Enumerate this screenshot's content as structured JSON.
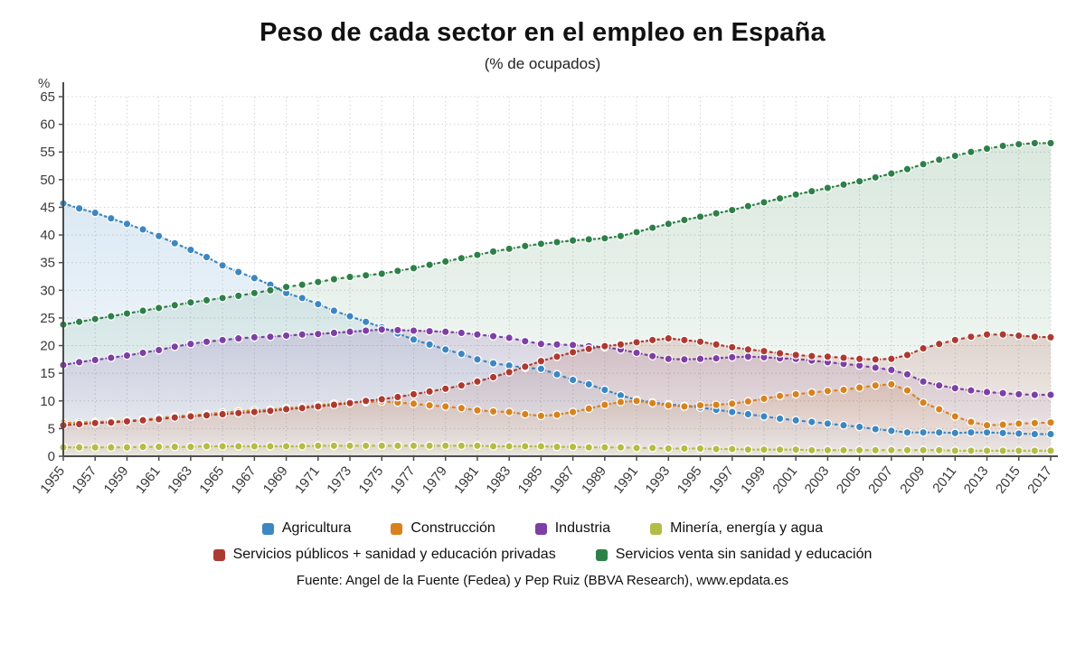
{
  "page": {
    "title": "Peso de cada sector en el empleo en España",
    "subtitle": "(% de ocupados)",
    "source": "Fuente: Angel de la Fuente (Fedea) y Pep Ruiz (BBVA Research), www.epdata.es"
  },
  "chart_data": {
    "type": "line",
    "title": "Peso de cada sector en el empleo en España",
    "subtitle": "(% de ocupados)",
    "y_unit": "%",
    "ylim": [
      0,
      65
    ],
    "y_ticks": [
      0,
      5,
      10,
      15,
      20,
      25,
      30,
      35,
      40,
      45,
      50,
      55,
      60,
      65
    ],
    "grid": true,
    "legend_position": "bottom",
    "marker": "circle",
    "line_style": "dotted",
    "x": [
      1955,
      1956,
      1957,
      1958,
      1959,
      1960,
      1961,
      1962,
      1963,
      1964,
      1965,
      1966,
      1967,
      1968,
      1969,
      1970,
      1971,
      1972,
      1973,
      1974,
      1975,
      1976,
      1977,
      1978,
      1979,
      1980,
      1981,
      1982,
      1983,
      1984,
      1985,
      1986,
      1987,
      1988,
      1989,
      1990,
      1991,
      1992,
      1993,
      1994,
      1995,
      1996,
      1997,
      1998,
      1999,
      2000,
      2001,
      2002,
      2003,
      2004,
      2005,
      2006,
      2007,
      2008,
      2009,
      2010,
      2011,
      2012,
      2013,
      2014,
      2015,
      2016,
      2017
    ],
    "x_tick_labels": [
      1955,
      1957,
      1959,
      1961,
      1963,
      1965,
      1967,
      1969,
      1971,
      1973,
      1975,
      1977,
      1979,
      1981,
      1983,
      1985,
      1987,
      1989,
      1991,
      1993,
      1995,
      1997,
      1999,
      2001,
      2003,
      2005,
      2007,
      2009,
      2011,
      2013,
      2015,
      2017
    ],
    "series": [
      {
        "name": "Agricultura",
        "color": "#3c87c2",
        "values": [
          45.7,
          44.8,
          44.0,
          43.0,
          42.0,
          41.0,
          39.8,
          38.5,
          37.3,
          36.0,
          34.5,
          33.3,
          32.2,
          31.0,
          29.5,
          28.6,
          27.5,
          26.3,
          25.3,
          24.3,
          23.3,
          22.2,
          21.1,
          20.2,
          19.3,
          18.5,
          17.5,
          16.8,
          16.4,
          16.0,
          15.8,
          14.8,
          13.8,
          13.0,
          12.0,
          11.0,
          10.2,
          9.7,
          9.4,
          9.1,
          8.8,
          8.4,
          8.0,
          7.6,
          7.2,
          6.8,
          6.5,
          6.2,
          5.9,
          5.6,
          5.3,
          4.9,
          4.6,
          4.3,
          4.3,
          4.3,
          4.2,
          4.3,
          4.3,
          4.2,
          4.1,
          4.0,
          4.0
        ]
      },
      {
        "name": "Construcción",
        "color": "#d8821e",
        "values": [
          6.0,
          6.1,
          6.2,
          6.3,
          6.4,
          6.6,
          6.9,
          7.2,
          7.4,
          7.6,
          7.9,
          8.1,
          8.3,
          8.4,
          8.7,
          8.9,
          9.2,
          9.5,
          9.7,
          9.8,
          9.9,
          9.7,
          9.5,
          9.2,
          9.0,
          8.7,
          8.3,
          8.1,
          8.0,
          7.6,
          7.3,
          7.5,
          8.0,
          8.6,
          9.3,
          9.8,
          10.0,
          9.6,
          9.2,
          9.0,
          9.2,
          9.3,
          9.5,
          9.9,
          10.4,
          10.9,
          11.2,
          11.5,
          11.8,
          12.0,
          12.4,
          12.8,
          13.0,
          11.9,
          9.7,
          8.5,
          7.2,
          6.2,
          5.6,
          5.7,
          5.9,
          6.0,
          6.1
        ]
      },
      {
        "name": "Industria",
        "color": "#7e3fa5",
        "values": [
          16.5,
          17.0,
          17.4,
          17.8,
          18.2,
          18.7,
          19.2,
          19.8,
          20.3,
          20.7,
          21.0,
          21.3,
          21.5,
          21.6,
          21.8,
          22.0,
          22.1,
          22.3,
          22.5,
          22.7,
          22.9,
          22.8,
          22.7,
          22.6,
          22.5,
          22.3,
          22.0,
          21.7,
          21.4,
          20.8,
          20.3,
          20.2,
          20.1,
          19.9,
          19.7,
          19.3,
          18.7,
          18.1,
          17.6,
          17.5,
          17.6,
          17.7,
          17.9,
          18.0,
          17.9,
          17.7,
          17.6,
          17.3,
          17.0,
          16.7,
          16.4,
          16.0,
          15.6,
          14.8,
          13.5,
          12.8,
          12.3,
          11.9,
          11.6,
          11.4,
          11.2,
          11.1,
          11.1
        ]
      },
      {
        "name": "Minería, energía y agua",
        "color": "#b3bd45",
        "values": [
          1.6,
          1.6,
          1.6,
          1.6,
          1.6,
          1.7,
          1.7,
          1.7,
          1.7,
          1.8,
          1.8,
          1.8,
          1.8,
          1.8,
          1.8,
          1.8,
          1.9,
          1.9,
          1.9,
          1.9,
          1.9,
          1.9,
          1.9,
          1.9,
          1.9,
          1.9,
          1.9,
          1.8,
          1.8,
          1.8,
          1.8,
          1.7,
          1.7,
          1.6,
          1.6,
          1.6,
          1.5,
          1.5,
          1.4,
          1.4,
          1.4,
          1.3,
          1.3,
          1.2,
          1.2,
          1.2,
          1.2,
          1.1,
          1.1,
          1.1,
          1.1,
          1.1,
          1.1,
          1.1,
          1.1,
          1.1,
          1.0,
          1.0,
          1.0,
          1.0,
          1.0,
          1.0,
          1.0
        ]
      },
      {
        "name": "Servicios públicos + sanidad y educación privadas",
        "color": "#ad3a31",
        "values": [
          5.6,
          5.8,
          6.0,
          6.1,
          6.3,
          6.5,
          6.7,
          7.0,
          7.2,
          7.4,
          7.6,
          7.8,
          8.0,
          8.2,
          8.5,
          8.7,
          9.0,
          9.3,
          9.6,
          10.0,
          10.3,
          10.7,
          11.2,
          11.7,
          12.2,
          12.8,
          13.5,
          14.3,
          15.2,
          16.2,
          17.2,
          18.0,
          18.8,
          19.4,
          19.9,
          20.2,
          20.6,
          21.0,
          21.3,
          21.0,
          20.7,
          20.2,
          19.7,
          19.3,
          19.0,
          18.6,
          18.3,
          18.1,
          18.0,
          17.8,
          17.6,
          17.5,
          17.6,
          18.3,
          19.5,
          20.3,
          21.0,
          21.6,
          22.0,
          22.0,
          21.8,
          21.6,
          21.5
        ]
      },
      {
        "name": "Servicios venta sin sanidad y educación",
        "color": "#2e8049",
        "values": [
          23.8,
          24.3,
          24.8,
          25.3,
          25.8,
          26.3,
          26.8,
          27.3,
          27.8,
          28.2,
          28.6,
          29.0,
          29.5,
          30.0,
          30.6,
          31.0,
          31.5,
          32.0,
          32.4,
          32.7,
          33.0,
          33.5,
          34.0,
          34.6,
          35.2,
          35.8,
          36.4,
          37.0,
          37.5,
          38.0,
          38.4,
          38.7,
          39.0,
          39.2,
          39.4,
          39.8,
          40.5,
          41.3,
          42.0,
          42.7,
          43.3,
          43.9,
          44.5,
          45.2,
          45.9,
          46.6,
          47.3,
          47.9,
          48.5,
          49.1,
          49.7,
          50.4,
          51.1,
          51.9,
          52.8,
          53.6,
          54.3,
          55.0,
          55.6,
          56.1,
          56.4,
          56.6,
          56.6
        ]
      }
    ]
  }
}
